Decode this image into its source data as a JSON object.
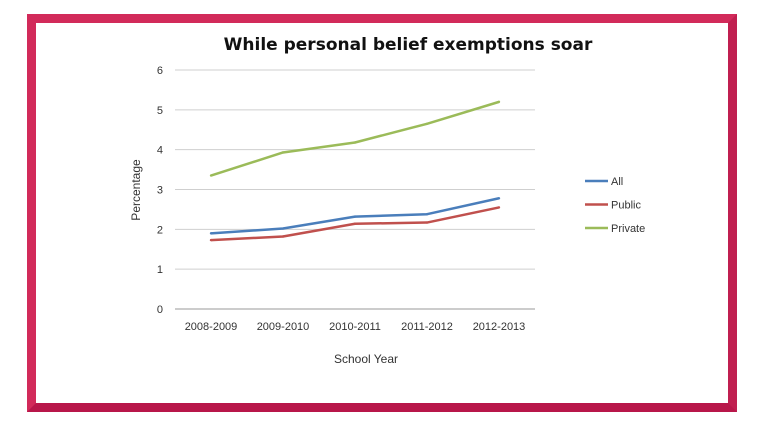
{
  "chart_data": {
    "type": "line",
    "title": "While personal belief exemptions soar",
    "xlabel": "School Year",
    "ylabel": "Percentage",
    "categories": [
      "2008-2009",
      "2009-2010",
      "2010-2011",
      "2011-2012",
      "2012-2013"
    ],
    "ylim": [
      0,
      6
    ],
    "yticks": [
      0,
      1,
      2,
      3,
      4,
      5,
      6
    ],
    "grid": true,
    "legend_position": "right",
    "series": [
      {
        "name": "All",
        "color": "#4a7ebb",
        "values": [
          1.9,
          2.02,
          2.32,
          2.38,
          2.78
        ]
      },
      {
        "name": "Public",
        "color": "#c0504d",
        "values": [
          1.73,
          1.82,
          2.14,
          2.17,
          2.55
        ]
      },
      {
        "name": "Private",
        "color": "#9bbb59",
        "values": [
          3.35,
          3.93,
          4.18,
          4.65,
          5.2
        ]
      }
    ]
  }
}
